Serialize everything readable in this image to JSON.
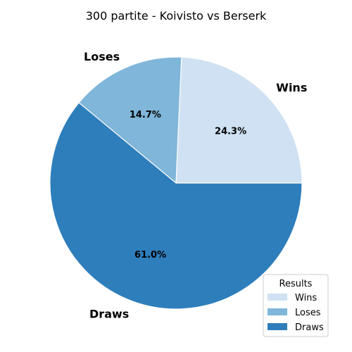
{
  "chart_data": {
    "type": "pie",
    "title": "300 partite - Koivisto vs Berserk",
    "labels": [
      "Wins",
      "Loses",
      "Draws"
    ],
    "values": [
      24.3,
      14.7,
      61.0
    ],
    "percent_labels": [
      "24.3%",
      "14.7%",
      "61.0%"
    ],
    "colors": [
      "#cfe1f2",
      "#7fb6d9",
      "#2e7ebc"
    ],
    "start_angle_deg": 0,
    "direction": "counterclockwise",
    "slice_edge_color": "#ffffff",
    "legend": {
      "title": "Results",
      "placement": "lower-right",
      "entries": [
        "Wins",
        "Loses",
        "Draws"
      ]
    }
  }
}
